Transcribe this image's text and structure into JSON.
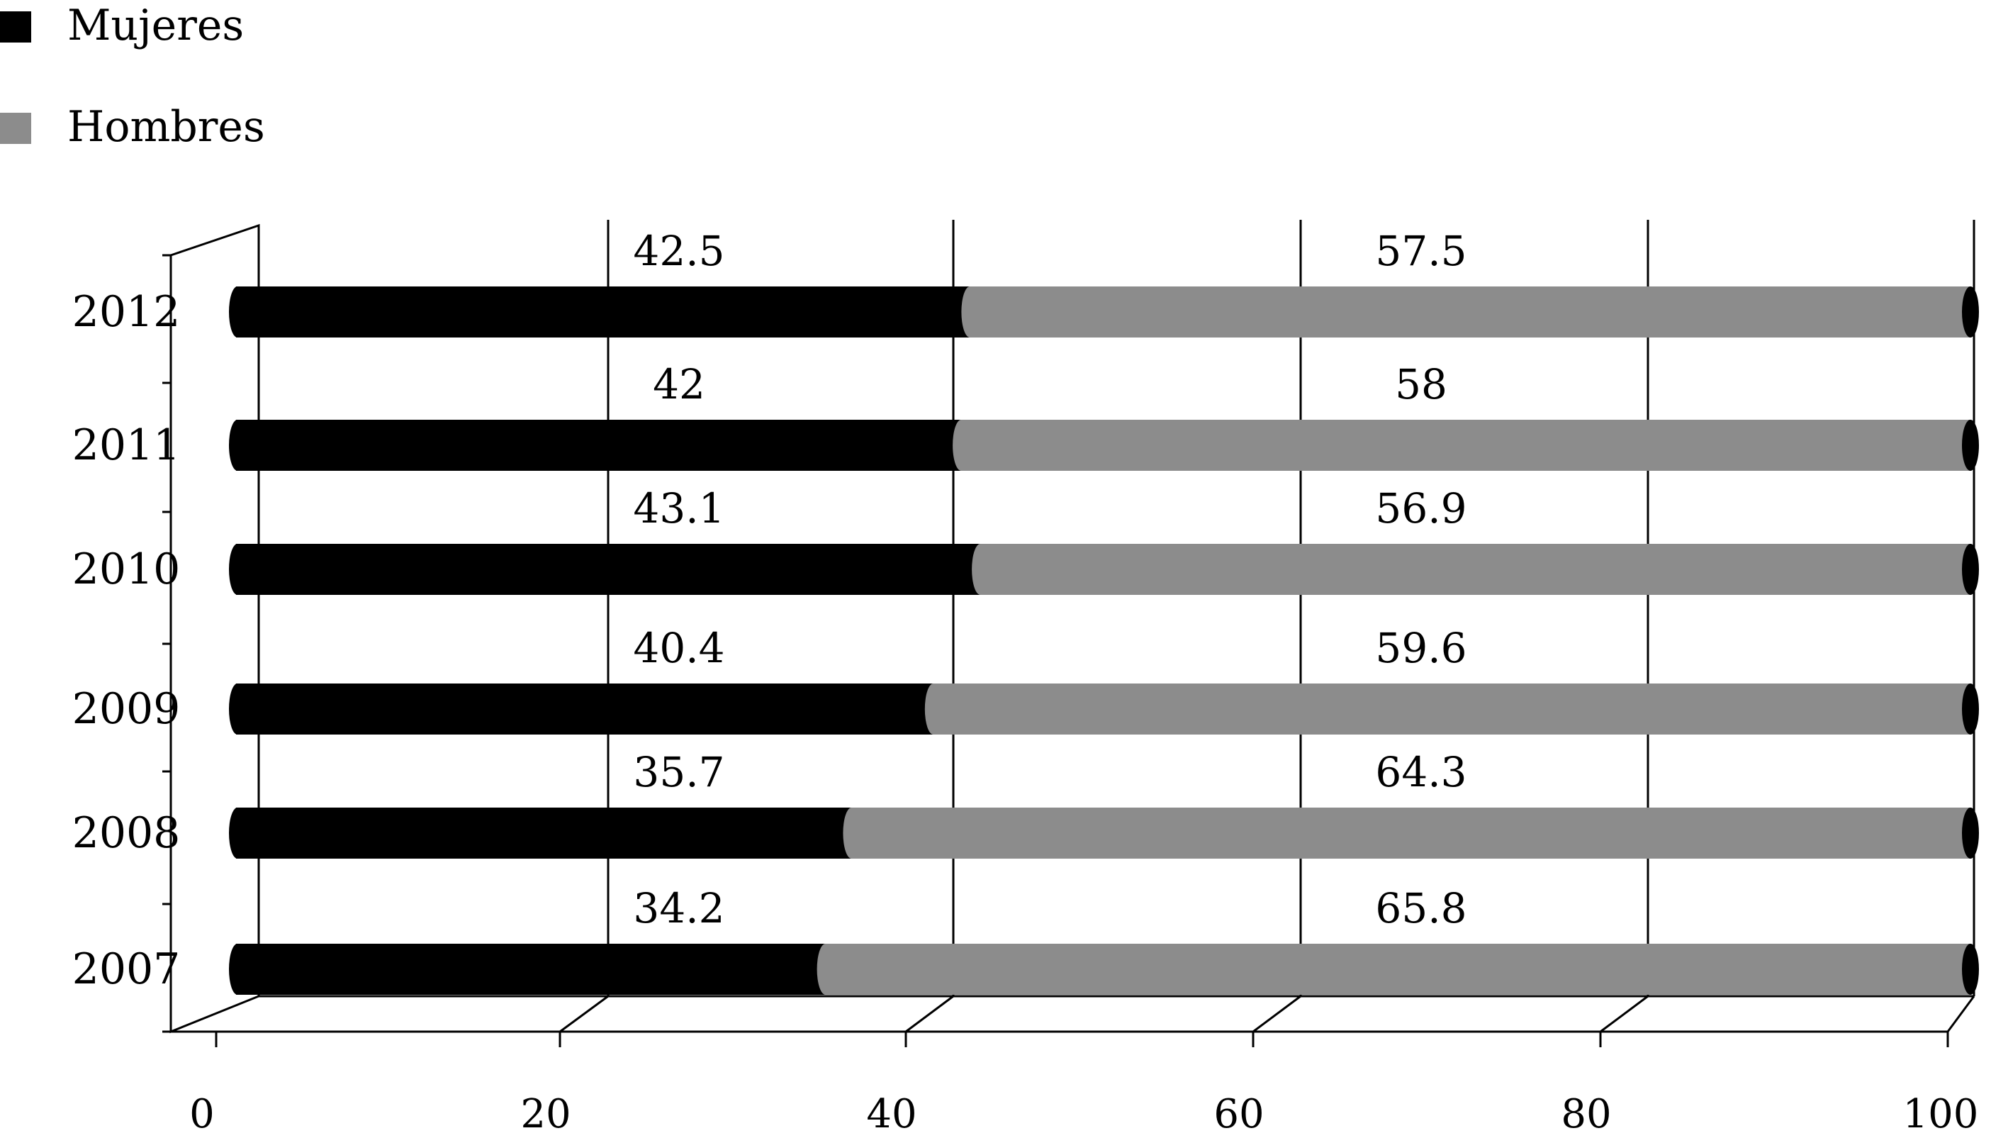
{
  "chart_data": {
    "type": "bar",
    "stacked": true,
    "orientation": "horizontal",
    "style": "3d",
    "categories": [
      "2012",
      "2011",
      "2010",
      "2009",
      "2008",
      "2007"
    ],
    "series": [
      {
        "name": "Mujeres",
        "color": "#000000",
        "values": [
          42.5,
          42,
          43.1,
          40.4,
          35.7,
          34.2
        ]
      },
      {
        "name": "Hombres",
        "color": "#8c8c8c",
        "values": [
          57.5,
          58,
          56.9,
          59.6,
          64.3,
          65.8
        ]
      }
    ],
    "xticks": [
      "0",
      "20",
      "40",
      "60",
      "80",
      "100"
    ],
    "xlim": [
      0,
      100
    ],
    "title": "",
    "xlabel": "",
    "ylabel": "",
    "grid": "vertical",
    "legend": "top-left",
    "data_labels": "above-bar"
  }
}
